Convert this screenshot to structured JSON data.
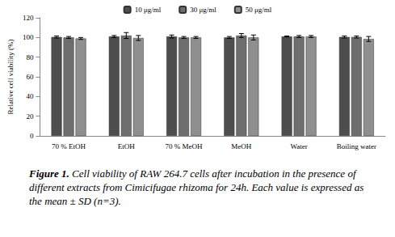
{
  "chart_data": {
    "type": "bar",
    "title": "Figure 1. Cell viability of RAW 264.7 cells after incubation in the presence of different extracts from Cimicifugae rhizoma for 24h. Each value is expressed as the mean ± SD (n=3).",
    "y_label": "Relative cell viability (%)",
    "categories": [
      "70 % EtOH",
      "EtOH",
      "70 % MeOH",
      "MeOH",
      "Water",
      "Boiling water"
    ],
    "series": [
      {
        "name": "10 μg/ml",
        "color": "#4d4d4d",
        "values": [
          100.5,
          101,
          101,
          100,
          101,
          100.5
        ],
        "errors": [
          1,
          1,
          1.5,
          1,
          0.5,
          1
        ]
      },
      {
        "name": "30 μg/ml",
        "color": "#6e6e6e",
        "values": [
          100,
          102,
          100,
          102,
          101,
          100.5
        ],
        "errors": [
          1,
          3,
          1,
          2,
          1,
          1
        ]
      },
      {
        "name": "50 μg/ml",
        "color": "#8f8f8f",
        "values": [
          99,
          99.5,
          100,
          100,
          101,
          98.5
        ],
        "errors": [
          1,
          2.5,
          1,
          2.5,
          1,
          2.5
        ]
      }
    ],
    "ylim": [
      0,
      120
    ],
    "yticks": [
      0,
      20,
      40,
      60,
      80,
      100,
      120
    ],
    "grid": false,
    "legend": "top"
  }
}
